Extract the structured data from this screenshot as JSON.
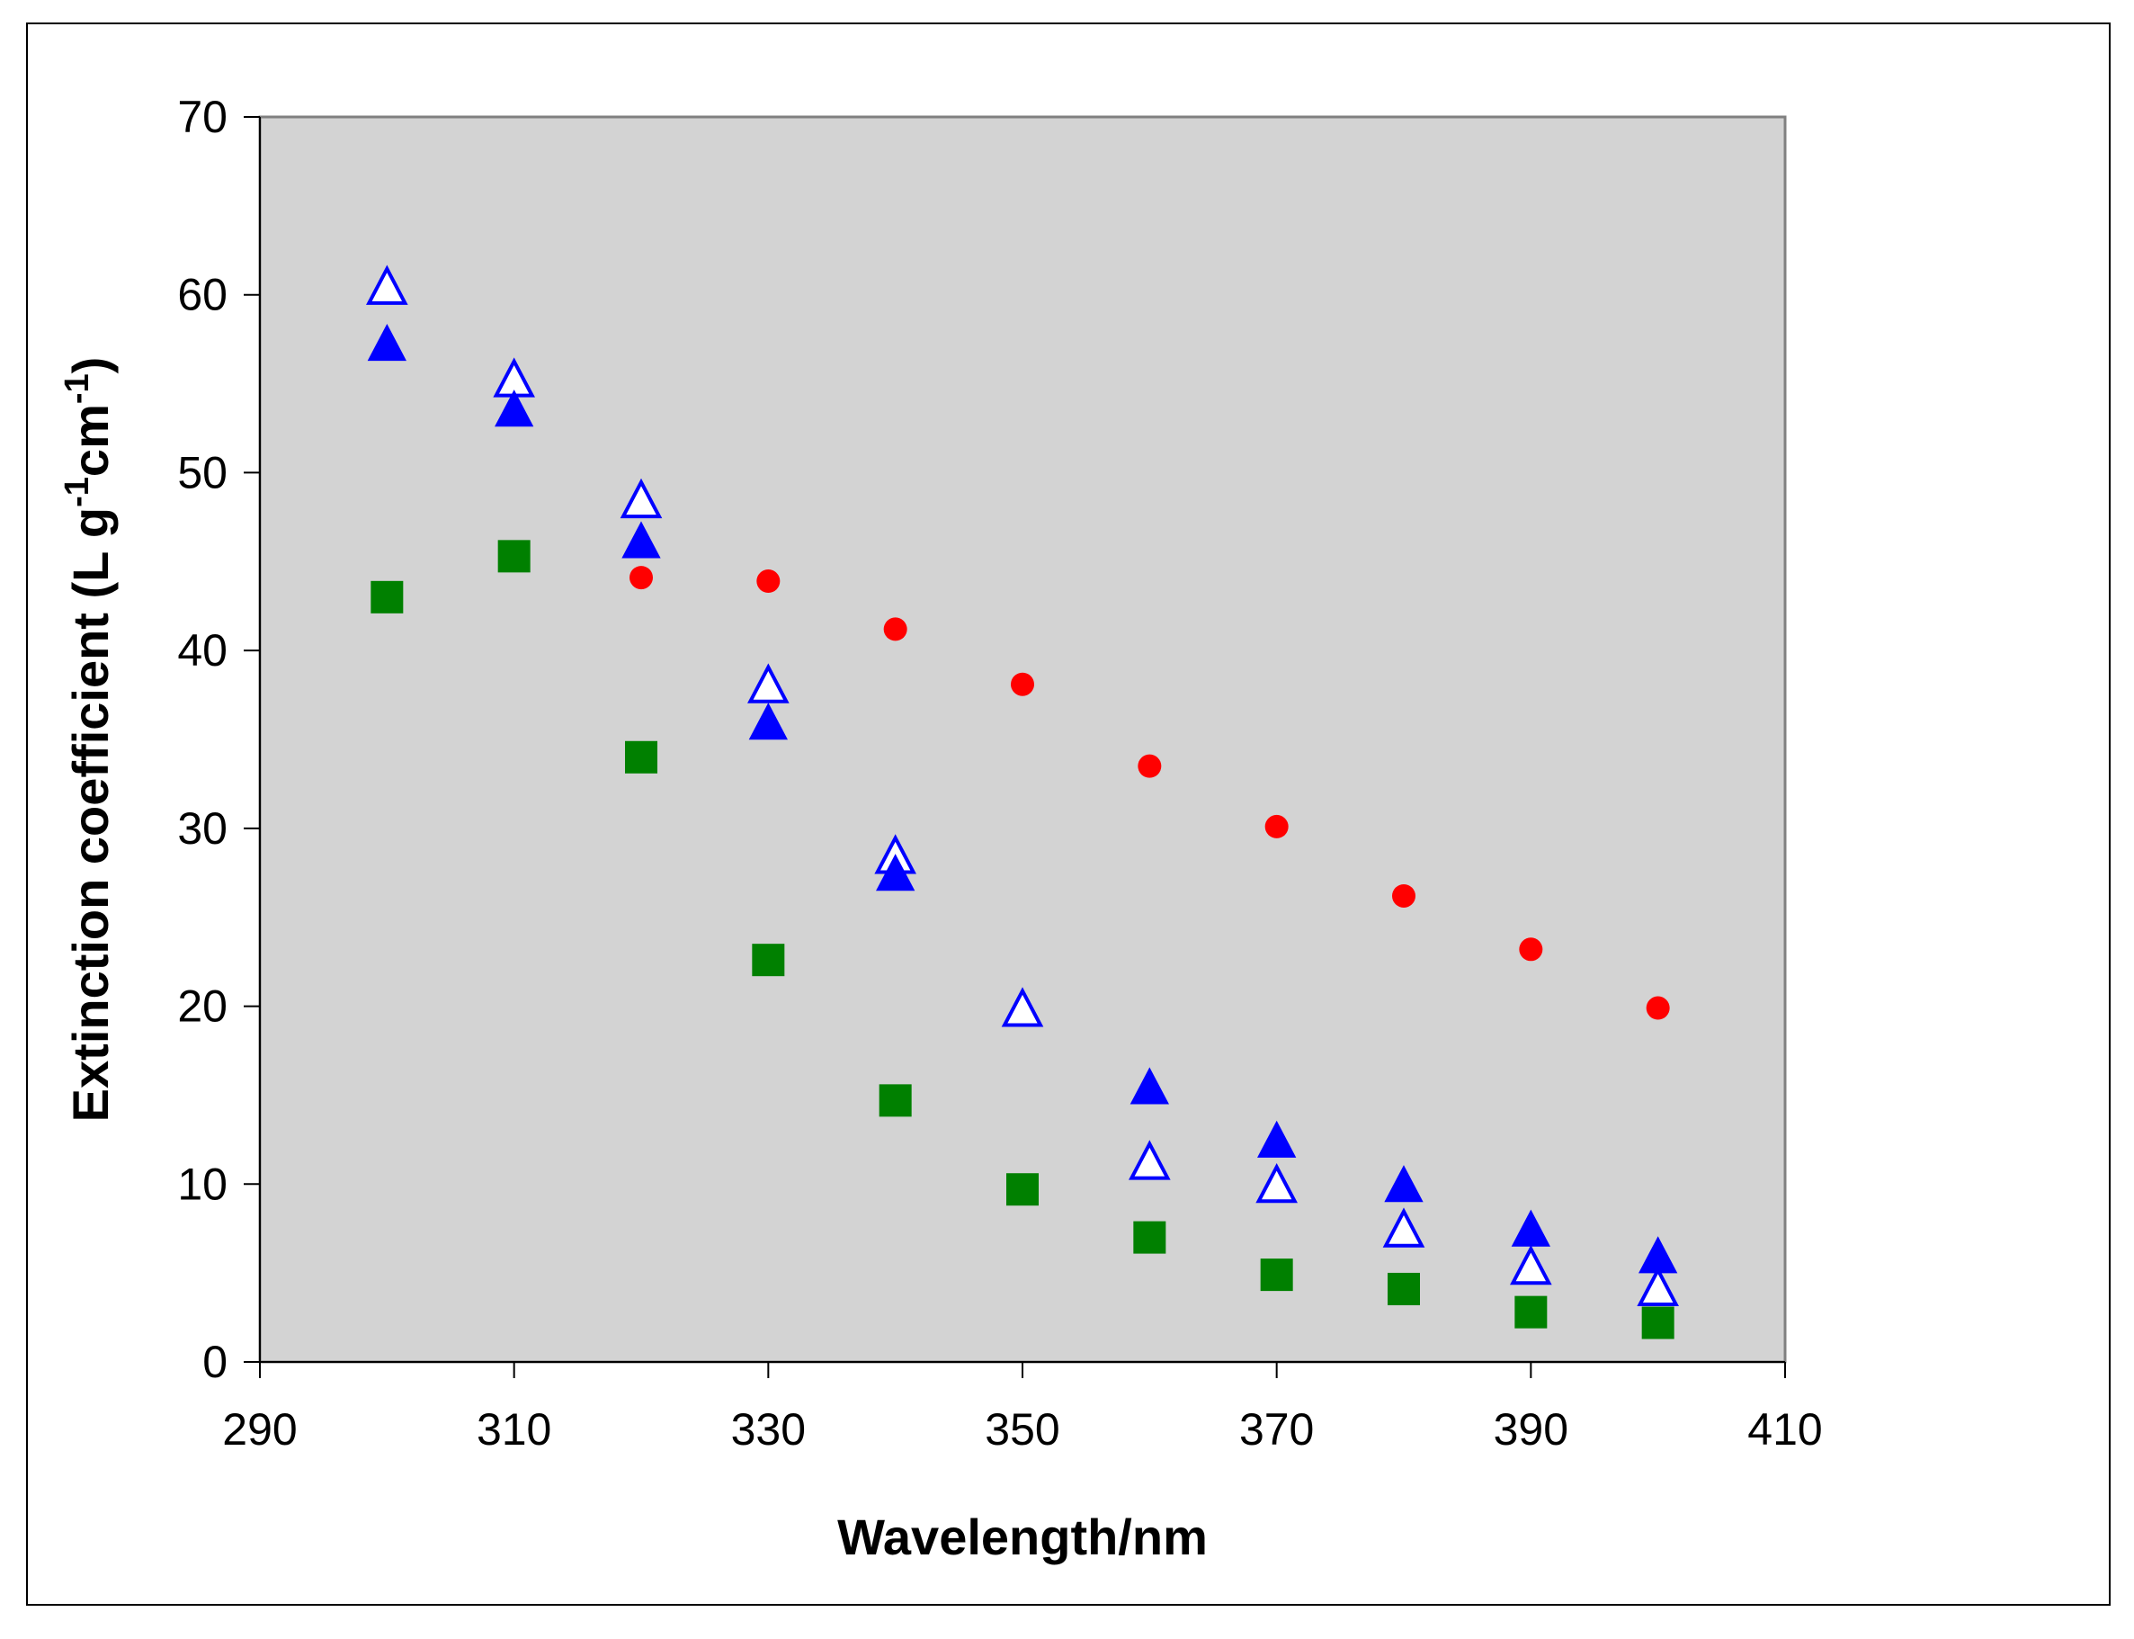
{
  "chart_data": {
    "type": "scatter",
    "title": "",
    "xlabel": "Wavelength/nm",
    "ylabel": {
      "parts": [
        "Extinction coefficient (L g",
        "-1",
        "cm",
        "-1",
        ")"
      ]
    },
    "xlim": [
      290,
      410
    ],
    "ylim": [
      0,
      70
    ],
    "x_ticks": [
      "290",
      "310",
      "330",
      "350",
      "370",
      "390",
      "410"
    ],
    "y_ticks": [
      "0",
      "10",
      "20",
      "30",
      "40",
      "50",
      "60",
      "70"
    ],
    "grid": false,
    "legend": "none",
    "plot_background": "#d3d3d3",
    "series": [
      {
        "marker": "circle-filled",
        "color": "#ff0000",
        "x": [
          300,
          310,
          320,
          330,
          340,
          350,
          360,
          370,
          380,
          390,
          400
        ],
        "y": [
          43.0,
          45.2,
          44.1,
          43.9,
          41.2,
          38.1,
          33.5,
          30.1,
          26.2,
          23.2,
          19.9
        ]
      },
      {
        "marker": "triangle-open",
        "color": "#0000ff",
        "x": [
          300,
          310,
          320,
          330,
          340,
          350,
          360,
          370,
          380,
          390,
          400
        ],
        "y": [
          60.5,
          55.3,
          48.5,
          38.1,
          28.5,
          19.9,
          11.3,
          10.0,
          7.5,
          5.4,
          4.2
        ]
      },
      {
        "marker": "triangle-filled",
        "color": "#0000ff",
        "x": [
          300,
          310,
          320,
          330,
          340,
          350,
          360,
          370,
          380,
          390,
          400
        ],
        "y": [
          57.3,
          53.6,
          46.2,
          36.0,
          27.5,
          null,
          15.5,
          12.5,
          10.0,
          7.5,
          6.0
        ]
      },
      {
        "marker": "square-filled",
        "color": "#008000",
        "x": [
          300,
          310,
          320,
          330,
          340,
          350,
          360,
          370,
          380,
          390,
          400
        ],
        "y": [
          43.0,
          45.3,
          34.0,
          22.6,
          14.7,
          9.7,
          7.0,
          4.9,
          4.1,
          2.8,
          2.2
        ]
      }
    ]
  }
}
